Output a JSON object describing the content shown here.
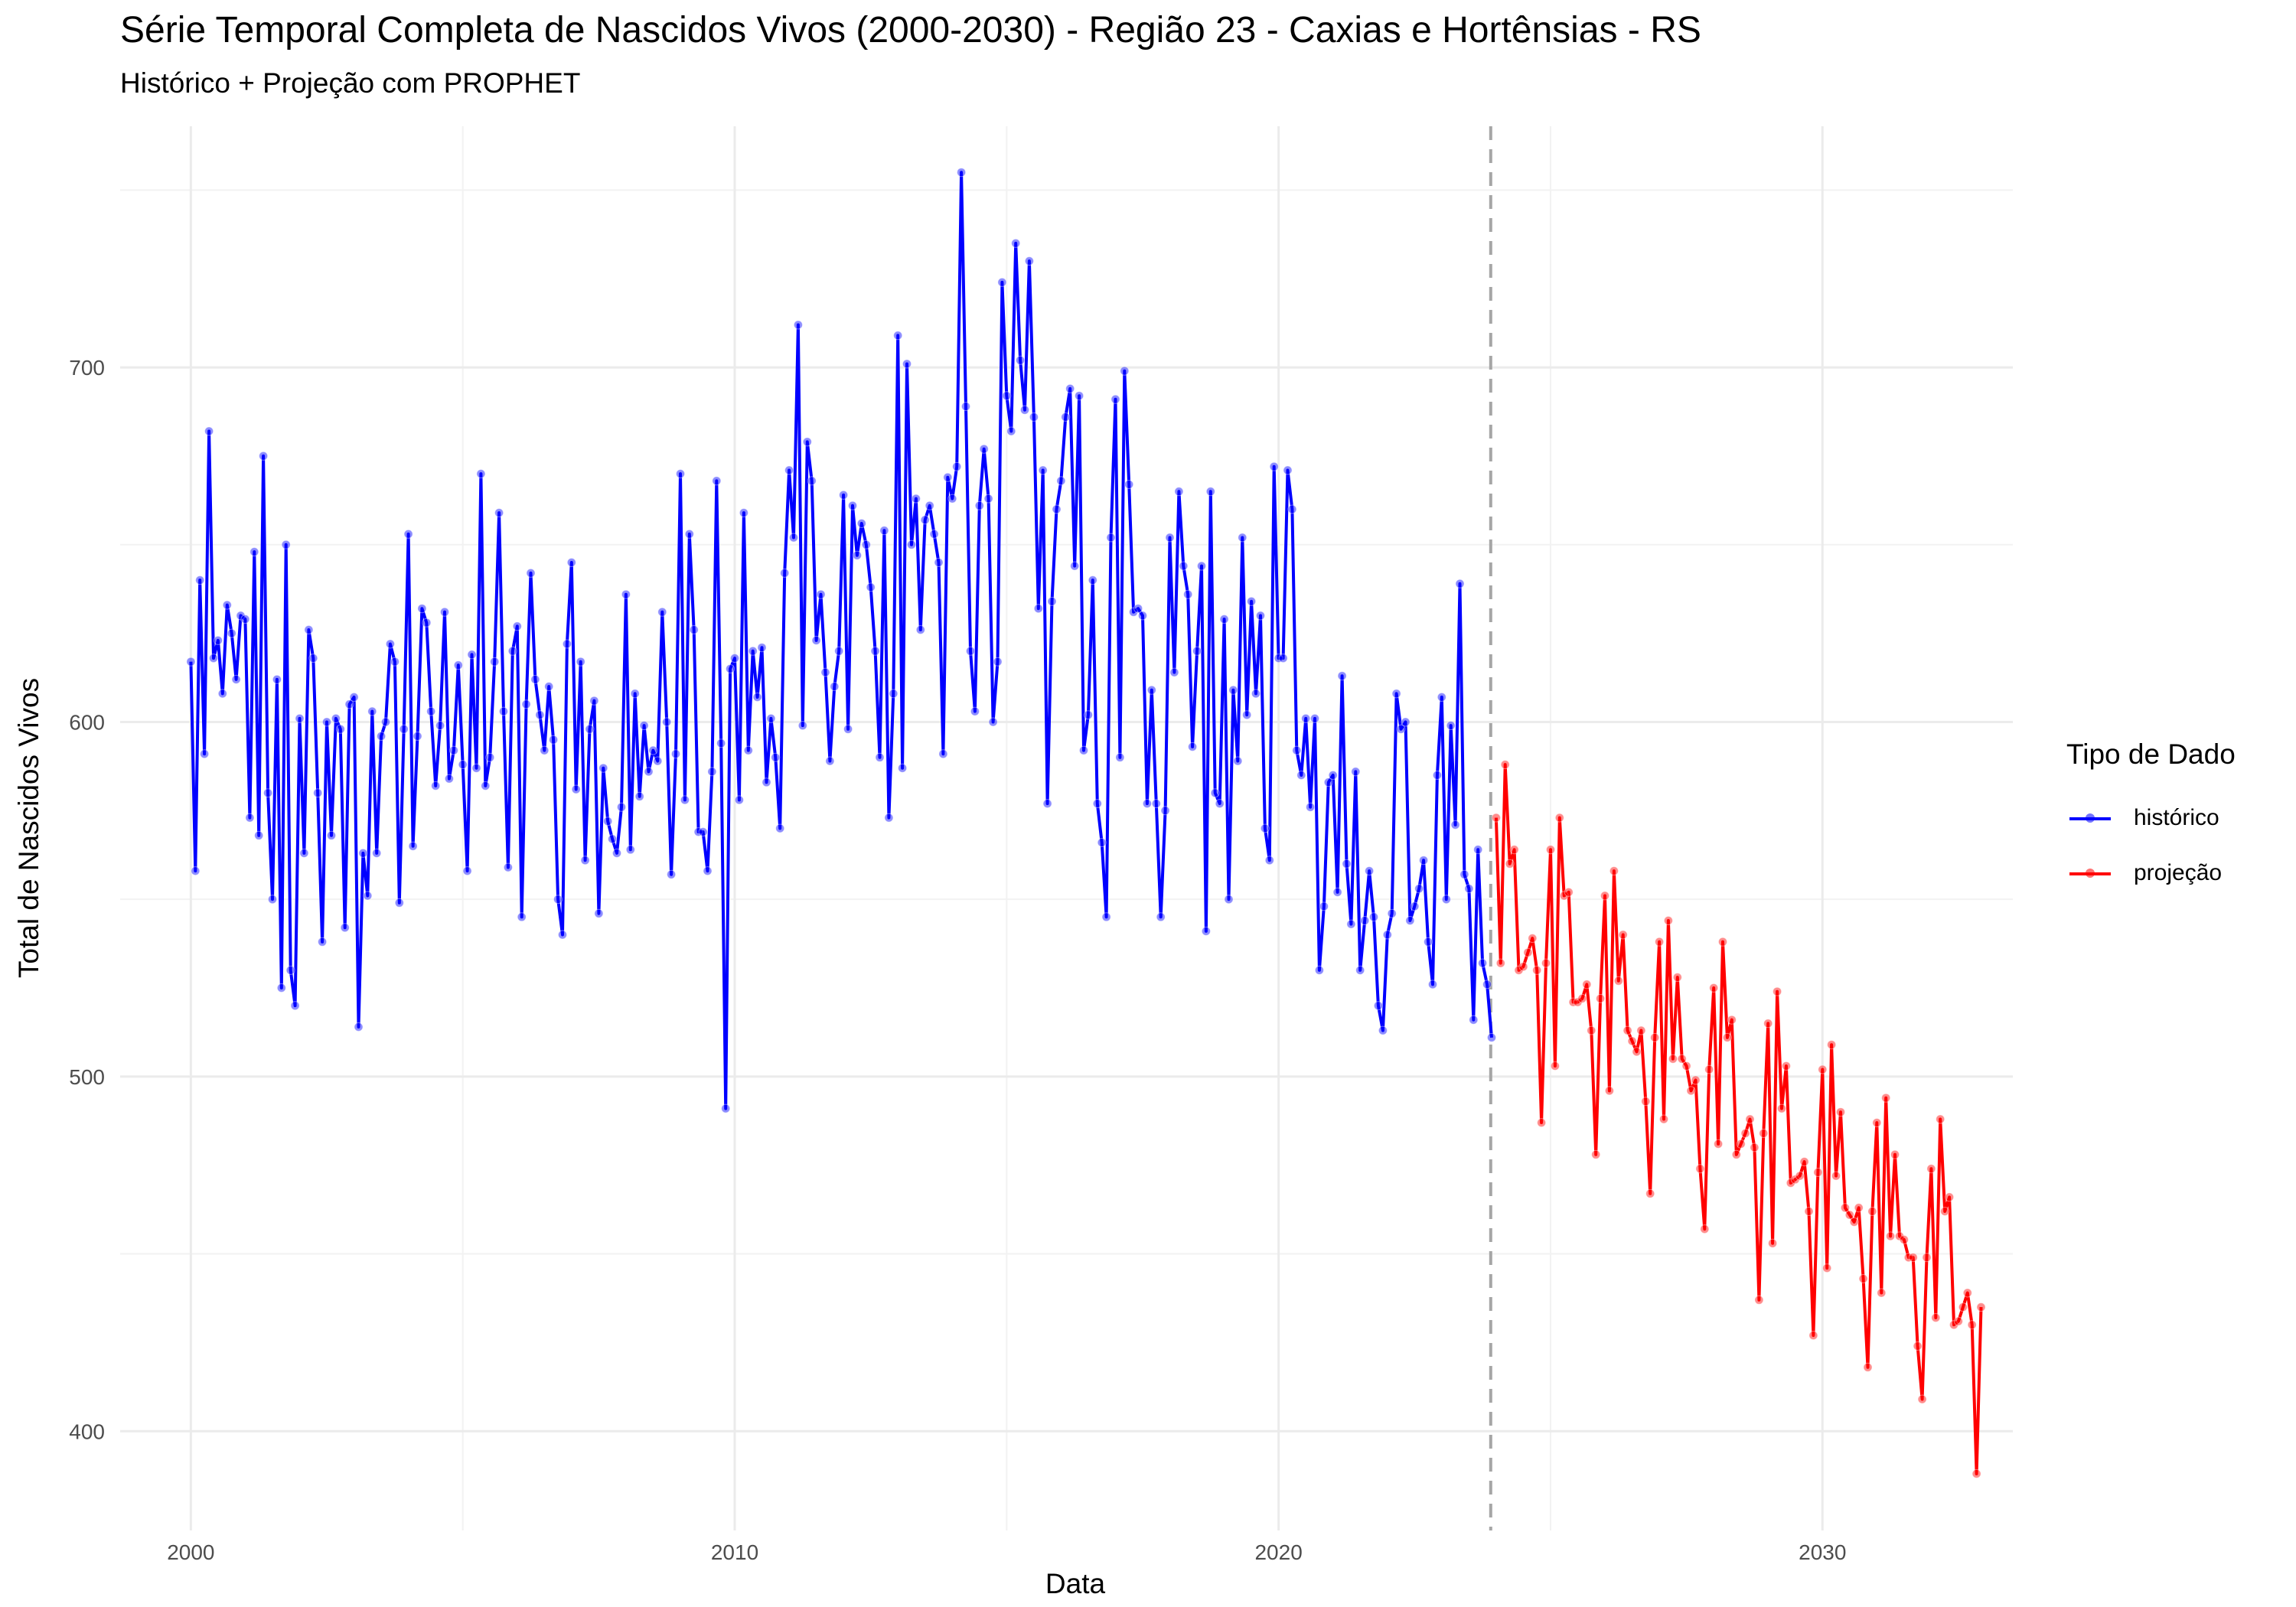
{
  "chart_data": {
    "type": "line",
    "title": "Série Temporal Completa de Nascidos Vivos (2000-2030) -  Região 23 - Caxias e Hortênsias - RS",
    "subtitle": "Histórico + Projeção com PROPHET",
    "xlabel": "Data",
    "ylabel": "Total de Nascidos Vivos",
    "xlim": [
      1998.7,
      2033.5
    ],
    "ylim": [
      372,
      768
    ],
    "x_ticks": [
      2000,
      2010,
      2020,
      2030
    ],
    "y_ticks": [
      400,
      500,
      600,
      700
    ],
    "grid": true,
    "legend_title": "Tipo de Dado",
    "legend_position": "right",
    "vline_x": 2023.9,
    "series": [
      {
        "name": "histórico",
        "color": "#0000ff",
        "x_start": 2000.0,
        "x_step": 0.0833333,
        "values": [
          617,
          558,
          640,
          591,
          682,
          618,
          623,
          608,
          633,
          625,
          612,
          630,
          629,
          573,
          648,
          568,
          675,
          580,
          550,
          612,
          525,
          650,
          530,
          520,
          601,
          563,
          626,
          618,
          580,
          538,
          600,
          568,
          601,
          598,
          542,
          605,
          607,
          514,
          563,
          551,
          603,
          563,
          596,
          600,
          622,
          617,
          549,
          598,
          653,
          565,
          596,
          632,
          628,
          603,
          582,
          599,
          631,
          584,
          592,
          616,
          588,
          558,
          619,
          587,
          670,
          582,
          590,
          617,
          659,
          603,
          559,
          620,
          627,
          545,
          605,
          642,
          612,
          602,
          592,
          610,
          595,
          550,
          540,
          622,
          645,
          581,
          617,
          561,
          598,
          606,
          546,
          587,
          572,
          567,
          563,
          576,
          636,
          564,
          608,
          579,
          599,
          586,
          592,
          589,
          631,
          600,
          557,
          591,
          670,
          578,
          653,
          626,
          569,
          569,
          558,
          586,
          668,
          594,
          491,
          615,
          618,
          578,
          659,
          592,
          620,
          607,
          621,
          583,
          601,
          590,
          570,
          642,
          671,
          652,
          712,
          599,
          679,
          668,
          623,
          636,
          614,
          589,
          610,
          620,
          664,
          598,
          661,
          647,
          656,
          650,
          638,
          620,
          590,
          654,
          573,
          608,
          709,
          587,
          701,
          650,
          663,
          626,
          657,
          661,
          653,
          645,
          591,
          669,
          663,
          672,
          755,
          689,
          620,
          603,
          661,
          677,
          663,
          600,
          617,
          724,
          692,
          682,
          735,
          702,
          688,
          730,
          686,
          632,
          671,
          577,
          634,
          660,
          668,
          686,
          694,
          644,
          692,
          592,
          602,
          640,
          577,
          566,
          545,
          652,
          691,
          590,
          699,
          667,
          631,
          632,
          630,
          577,
          609,
          577,
          545,
          575,
          652,
          614,
          665,
          644,
          636,
          593,
          620,
          644,
          541,
          665,
          580,
          577,
          629,
          550,
          609,
          589,
          652,
          602,
          634,
          608,
          630,
          570,
          561,
          672,
          618,
          618,
          671,
          660,
          592,
          585,
          601,
          576,
          601,
          530,
          548,
          583,
          585,
          552,
          613,
          560,
          543,
          586,
          530,
          544,
          558,
          545,
          520,
          513,
          540,
          546,
          608,
          598,
          600,
          544,
          548,
          553,
          561,
          538,
          526,
          585,
          607,
          550,
          599,
          571,
          639,
          557,
          553,
          516,
          564,
          532,
          526,
          511
        ]
      },
      {
        "name": "projeção",
        "color": "#ff0000",
        "x_start": 2024.0,
        "x_step": 0.0833333,
        "values": [
          573,
          532,
          588,
          560,
          564,
          530,
          531,
          535,
          539,
          530,
          487,
          532,
          564,
          503,
          573,
          551,
          552,
          521,
          521,
          522,
          526,
          513,
          478,
          522,
          551,
          496,
          558,
          527,
          540,
          513,
          510,
          507,
          513,
          493,
          467,
          511,
          538,
          488,
          544,
          505,
          528,
          505,
          503,
          496,
          499,
          474,
          457,
          502,
          525,
          481,
          538,
          511,
          516,
          478,
          481,
          484,
          488,
          480,
          437,
          484,
          515,
          453,
          524,
          491,
          503,
          470,
          471,
          472,
          476,
          462,
          427,
          473,
          502,
          446,
          509,
          472,
          490,
          463,
          461,
          459,
          463,
          443,
          418,
          462,
          487,
          439,
          494,
          455,
          478,
          455,
          454,
          449,
          449,
          424,
          409,
          449,
          474,
          432,
          488,
          462,
          466,
          430,
          431,
          435,
          439,
          430,
          388,
          435
        ]
      }
    ]
  }
}
